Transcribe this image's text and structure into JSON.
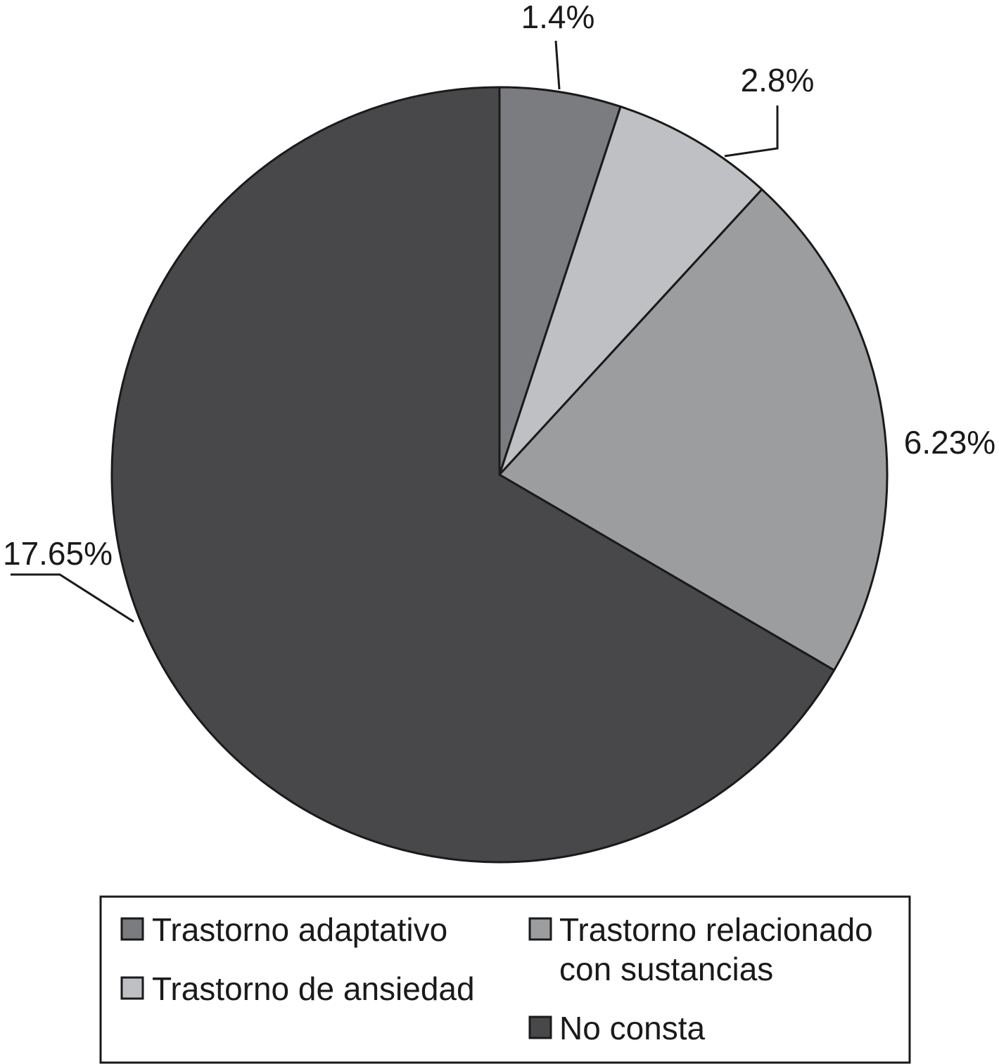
{
  "chart_data": {
    "type": "pie",
    "slices": [
      {
        "label": "Trastorno adaptativo",
        "value": 1.4,
        "display": "1.4%",
        "color": "#7b7c7f"
      },
      {
        "label": "Trastorno de ansiedad",
        "value": 2.8,
        "display": "2.8%",
        "color": "#bfc0c3"
      },
      {
        "label": "Trastorno relacionado con sustancias",
        "value": 6.23,
        "display": "6.23%",
        "color": "#9c9d9f"
      },
      {
        "label": "No consta",
        "value": 17.65,
        "display": "17.65%",
        "color": "#48484b"
      }
    ],
    "title": "",
    "legend_position": "bottom"
  },
  "legend": {
    "items": [
      {
        "lines": [
          "Trastorno adaptativo"
        ],
        "color": "#7b7c7f"
      },
      {
        "lines": [
          "Trastorno de ansiedad"
        ],
        "color": "#bfc0c3"
      },
      {
        "lines": [
          "Trastorno relacionado",
          "con sustancias"
        ],
        "color": "#9c9d9f"
      },
      {
        "lines": [
          "No consta"
        ],
        "color": "#48484b"
      }
    ]
  }
}
